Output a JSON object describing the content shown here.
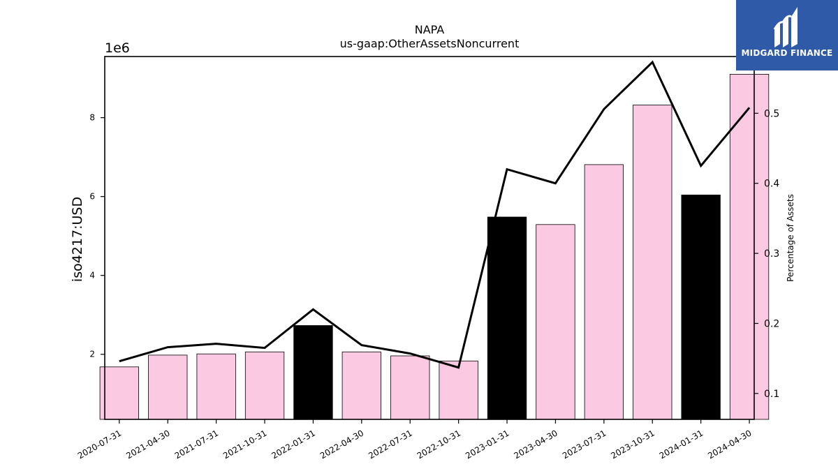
{
  "logo": {
    "text": "MIDGARD FINANCE",
    "background": "#2e5aa8"
  },
  "chart_data": {
    "type": "bar",
    "title": "NAPA",
    "subtitle": "us-gaap:OtherAssetsNoncurrent",
    "ylabel": "iso4217:USD",
    "y_offset_label": "1e6",
    "y2label": "Percentage of Assets",
    "categories": [
      "2020-07-31",
      "2021-04-30",
      "2021-07-31",
      "2021-10-31",
      "2022-01-31",
      "2022-04-30",
      "2022-07-31",
      "2022-10-31",
      "2023-01-31",
      "2023-04-30",
      "2023-07-31",
      "2023-10-31",
      "2024-01-31",
      "2024-04-30"
    ],
    "ylim": [
      350000,
      9550000
    ],
    "y_ticks": [
      2000000,
      4000000,
      6000000,
      8000000
    ],
    "y_tick_labels": [
      "2",
      "4",
      "6",
      "8"
    ],
    "y2lim": [
      0.063,
      0.581
    ],
    "y2_ticks": [
      0.1,
      0.2,
      0.3,
      0.4,
      0.5
    ],
    "y2_tick_labels": [
      "0.1",
      "0.2",
      "0.3",
      "0.4",
      "0.5"
    ],
    "series": [
      {
        "type": "bar",
        "axis": "left",
        "values": [
          1680000,
          1980000,
          2010000,
          2060000,
          2730000,
          2060000,
          1960000,
          1830000,
          5480000,
          5290000,
          6810000,
          8320000,
          6040000,
          9100000
        ],
        "colors": [
          "#fcc9e3",
          "#fcc9e3",
          "#fcc9e3",
          "#fcc9e3",
          "#000000",
          "#fcc9e3",
          "#fcc9e3",
          "#fcc9e3",
          "#000000",
          "#fcc9e3",
          "#fcc9e3",
          "#fcc9e3",
          "#000000",
          "#fcc9e3"
        ]
      },
      {
        "type": "line",
        "axis": "right",
        "color": "#000000",
        "values": [
          0.146,
          0.166,
          0.171,
          0.165,
          0.22,
          0.169,
          0.157,
          0.137,
          0.42,
          0.4,
          0.506,
          0.573,
          0.425,
          0.508
        ]
      }
    ],
    "grid": false,
    "legend": "none"
  }
}
